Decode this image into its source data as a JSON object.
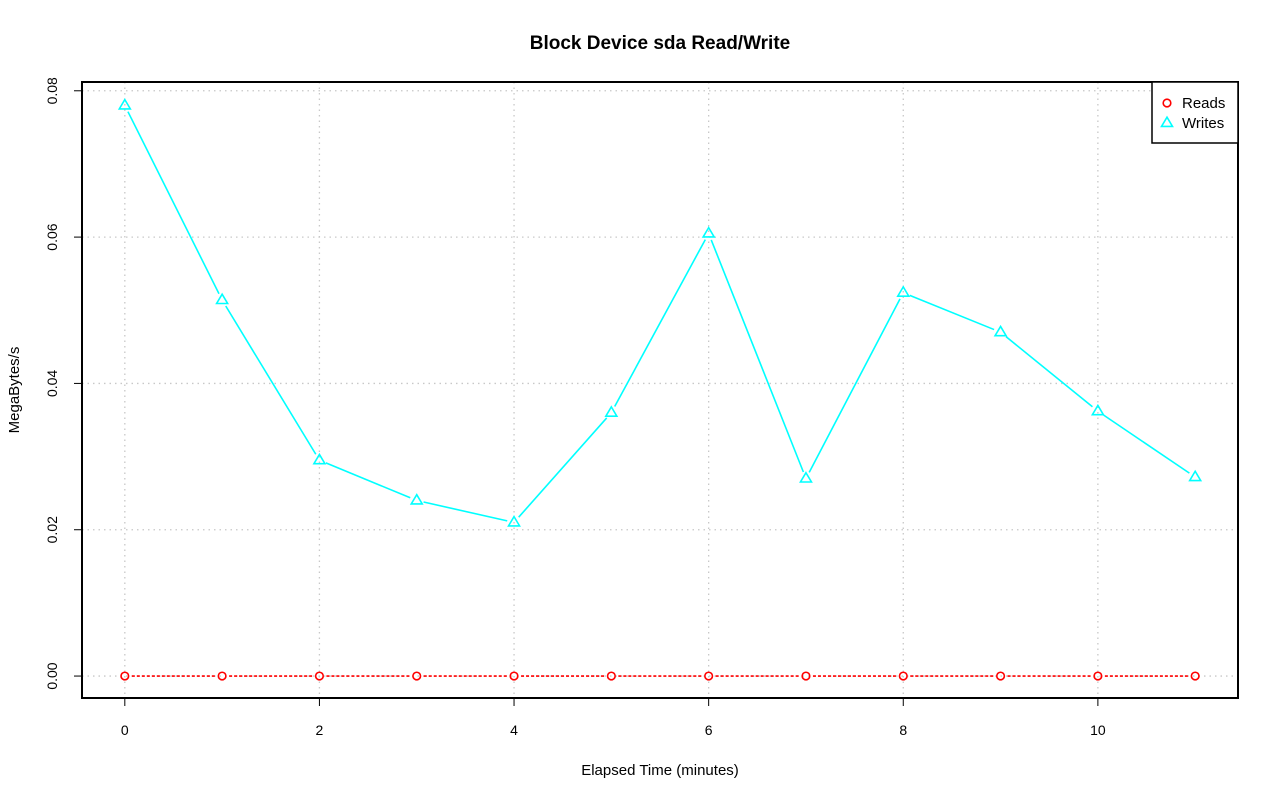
{
  "chart_data": {
    "type": "line",
    "title": "Block Device sda Read/Write",
    "xlabel": "Elapsed Time (minutes)",
    "ylabel": "MegaBytes/s",
    "x": [
      0,
      1,
      2,
      3,
      4,
      5,
      6,
      7,
      8,
      9,
      10,
      11
    ],
    "xlim": [
      -0.44,
      11.44
    ],
    "ylim": [
      -0.003,
      0.0812
    ],
    "x_ticks": [
      0,
      2,
      4,
      6,
      8,
      10
    ],
    "x_tick_labels": [
      "0",
      "2",
      "4",
      "6",
      "8",
      "10"
    ],
    "y_ticks": [
      0,
      0.02,
      0.04,
      0.06,
      0.08
    ],
    "y_tick_labels": [
      "0.00",
      "0.02",
      "0.04",
      "0.06",
      "0.08"
    ],
    "grid": true,
    "legend_position": "top-right",
    "series": [
      {
        "name": "Reads",
        "marker": "circle",
        "color": "#ff0000",
        "line_style": "dashed",
        "values": [
          0,
          0,
          0,
          0,
          0,
          0,
          0,
          0,
          0,
          0,
          0,
          0
        ]
      },
      {
        "name": "Writes",
        "marker": "triangle",
        "color": "#00ffff",
        "line_style": "solid",
        "values": [
          0.078,
          0.0514,
          0.0295,
          0.024,
          0.021,
          0.036,
          0.0605,
          0.027,
          0.0524,
          0.047,
          0.0362,
          0.0272
        ]
      }
    ]
  }
}
